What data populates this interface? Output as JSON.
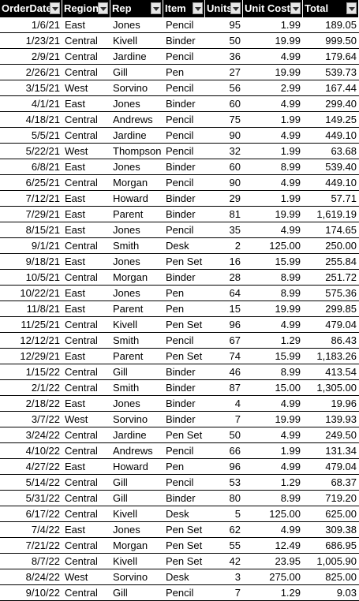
{
  "headers": [
    "OrderDate",
    "Region",
    "Rep",
    "Item",
    "Units",
    "Unit Cost",
    "Total"
  ],
  "rows": [
    [
      "1/6/21",
      "East",
      "Jones",
      "Pencil",
      "95",
      "1.99",
      "189.05"
    ],
    [
      "1/23/21",
      "Central",
      "Kivell",
      "Binder",
      "50",
      "19.99",
      "999.50"
    ],
    [
      "2/9/21",
      "Central",
      "Jardine",
      "Pencil",
      "36",
      "4.99",
      "179.64"
    ],
    [
      "2/26/21",
      "Central",
      "Gill",
      "Pen",
      "27",
      "19.99",
      "539.73"
    ],
    [
      "3/15/21",
      "West",
      "Sorvino",
      "Pencil",
      "56",
      "2.99",
      "167.44"
    ],
    [
      "4/1/21",
      "East",
      "Jones",
      "Binder",
      "60",
      "4.99",
      "299.40"
    ],
    [
      "4/18/21",
      "Central",
      "Andrews",
      "Pencil",
      "75",
      "1.99",
      "149.25"
    ],
    [
      "5/5/21",
      "Central",
      "Jardine",
      "Pencil",
      "90",
      "4.99",
      "449.10"
    ],
    [
      "5/22/21",
      "West",
      "Thompson",
      "Pencil",
      "32",
      "1.99",
      "63.68"
    ],
    [
      "6/8/21",
      "East",
      "Jones",
      "Binder",
      "60",
      "8.99",
      "539.40"
    ],
    [
      "6/25/21",
      "Central",
      "Morgan",
      "Pencil",
      "90",
      "4.99",
      "449.10"
    ],
    [
      "7/12/21",
      "East",
      "Howard",
      "Binder",
      "29",
      "1.99",
      "57.71"
    ],
    [
      "7/29/21",
      "East",
      "Parent",
      "Binder",
      "81",
      "19.99",
      "1,619.19"
    ],
    [
      "8/15/21",
      "East",
      "Jones",
      "Pencil",
      "35",
      "4.99",
      "174.65"
    ],
    [
      "9/1/21",
      "Central",
      "Smith",
      "Desk",
      "2",
      "125.00",
      "250.00"
    ],
    [
      "9/18/21",
      "East",
      "Jones",
      "Pen Set",
      "16",
      "15.99",
      "255.84"
    ],
    [
      "10/5/21",
      "Central",
      "Morgan",
      "Binder",
      "28",
      "8.99",
      "251.72"
    ],
    [
      "10/22/21",
      "East",
      "Jones",
      "Pen",
      "64",
      "8.99",
      "575.36"
    ],
    [
      "11/8/21",
      "East",
      "Parent",
      "Pen",
      "15",
      "19.99",
      "299.85"
    ],
    [
      "11/25/21",
      "Central",
      "Kivell",
      "Pen Set",
      "96",
      "4.99",
      "479.04"
    ],
    [
      "12/12/21",
      "Central",
      "Smith",
      "Pencil",
      "67",
      "1.29",
      "86.43"
    ],
    [
      "12/29/21",
      "East",
      "Parent",
      "Pen Set",
      "74",
      "15.99",
      "1,183.26"
    ],
    [
      "1/15/22",
      "Central",
      "Gill",
      "Binder",
      "46",
      "8.99",
      "413.54"
    ],
    [
      "2/1/22",
      "Central",
      "Smith",
      "Binder",
      "87",
      "15.00",
      "1,305.00"
    ],
    [
      "2/18/22",
      "East",
      "Jones",
      "Binder",
      "4",
      "4.99",
      "19.96"
    ],
    [
      "3/7/22",
      "West",
      "Sorvino",
      "Binder",
      "7",
      "19.99",
      "139.93"
    ],
    [
      "3/24/22",
      "Central",
      "Jardine",
      "Pen Set",
      "50",
      "4.99",
      "249.50"
    ],
    [
      "4/10/22",
      "Central",
      "Andrews",
      "Pencil",
      "66",
      "1.99",
      "131.34"
    ],
    [
      "4/27/22",
      "East",
      "Howard",
      "Pen",
      "96",
      "4.99",
      "479.04"
    ],
    [
      "5/14/22",
      "Central",
      "Gill",
      "Pencil",
      "53",
      "1.29",
      "68.37"
    ],
    [
      "5/31/22",
      "Central",
      "Gill",
      "Binder",
      "80",
      "8.99",
      "719.20"
    ],
    [
      "6/17/22",
      "Central",
      "Kivell",
      "Desk",
      "5",
      "125.00",
      "625.00"
    ],
    [
      "7/4/22",
      "East",
      "Jones",
      "Pen Set",
      "62",
      "4.99",
      "309.38"
    ],
    [
      "7/21/22",
      "Central",
      "Morgan",
      "Pen Set",
      "55",
      "12.49",
      "686.95"
    ],
    [
      "8/7/22",
      "Central",
      "Kivell",
      "Pen Set",
      "42",
      "23.95",
      "1,005.90"
    ],
    [
      "8/24/22",
      "West",
      "Sorvino",
      "Desk",
      "3",
      "275.00",
      "825.00"
    ],
    [
      "9/10/22",
      "Central",
      "Gill",
      "Pencil",
      "7",
      "1.29",
      "9.03"
    ]
  ]
}
